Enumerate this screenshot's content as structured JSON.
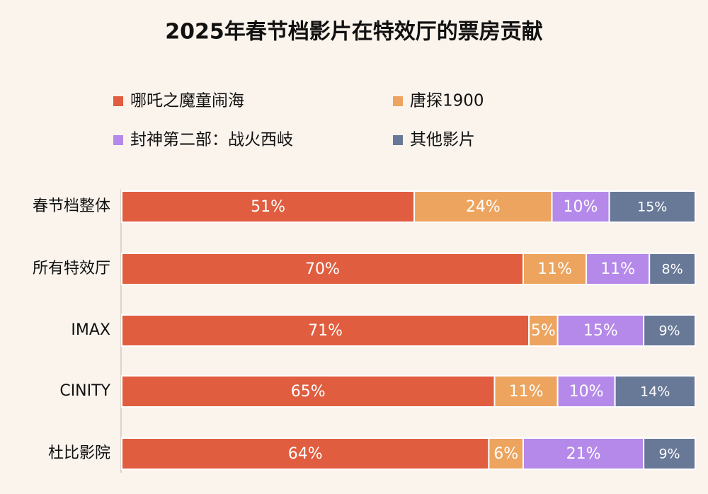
{
  "chart_data": {
    "type": "stacked-bar",
    "orientation": "horizontal",
    "title": "2025年春节档影片在特效厅的票房贡献",
    "categories": [
      "春节档整体",
      "所有特效厅",
      "IMAX",
      "CINITY",
      "杜比影院"
    ],
    "series": [
      {
        "name": "哪吒之魔童闹海",
        "color": "#e05d3f",
        "values": [
          51,
          70,
          71,
          65,
          64
        ],
        "value_labels": [
          "51%",
          "70%",
          "71%",
          "65%",
          "64%"
        ]
      },
      {
        "name": "唐探1900",
        "color": "#eca45e",
        "values": [
          24,
          11,
          5,
          11,
          6
        ],
        "value_labels": [
          "24%",
          "11%",
          "5%",
          "11%",
          "6%"
        ]
      },
      {
        "name": "封神第二部：战火西岐",
        "color": "#b589e9",
        "values": [
          10,
          11,
          15,
          10,
          21
        ],
        "value_labels": [
          "10%",
          "11%",
          "15%",
          "10%",
          "21%"
        ]
      },
      {
        "name": "其他影片",
        "color": "#687897",
        "values": [
          15,
          8,
          9,
          14,
          9
        ],
        "value_labels": [
          "15%",
          "8%",
          "9%",
          "14%",
          "9%"
        ]
      }
    ]
  }
}
